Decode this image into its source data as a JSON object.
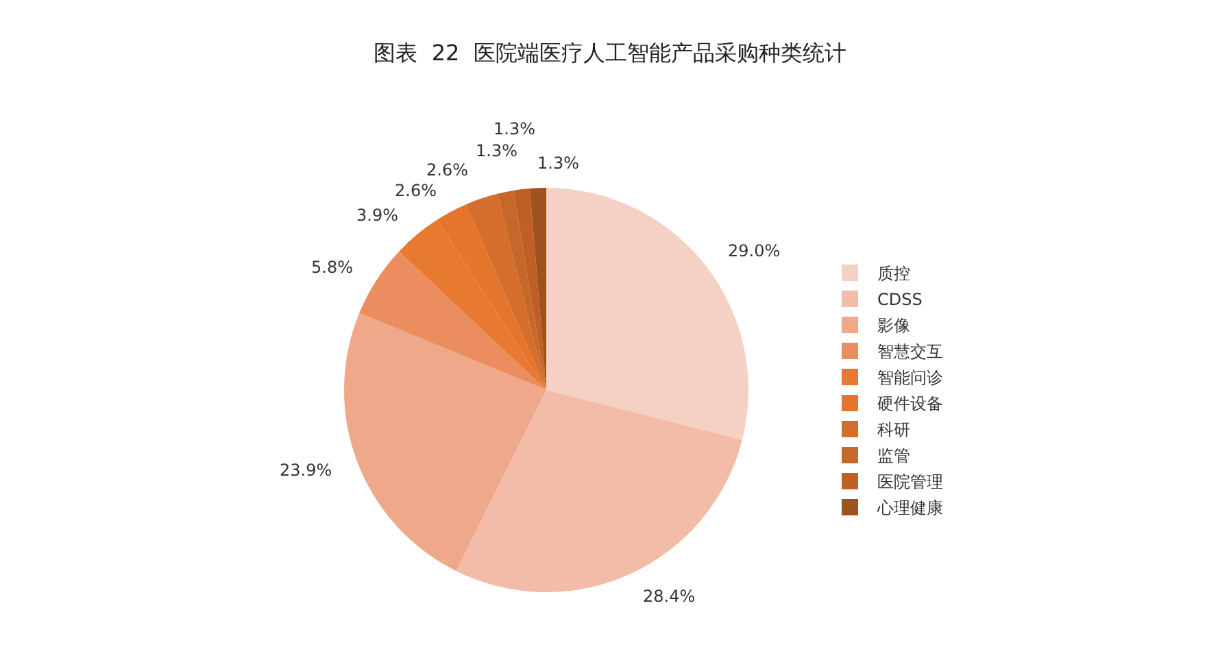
{
  "chart_data": {
    "type": "pie",
    "title": "图表  22  医院端医疗人工智能产品采购种类统计",
    "categories": [
      "质控",
      "CDSS",
      "影像",
      "智慧交互",
      "智能问诊",
      "硬件设备",
      "科研",
      "监管",
      "医院管理",
      "心理健康"
    ],
    "values": [
      29.0,
      28.4,
      23.9,
      5.8,
      3.9,
      2.6,
      2.6,
      1.3,
      1.3,
      1.3
    ],
    "value_labels": [
      "29.0%",
      "28.4%",
      "23.9%",
      "5.8%",
      "3.9%",
      "2.6%",
      "2.6%",
      "1.3%",
      "1.3%",
      "1.3%"
    ],
    "colors": [
      "#f5d0c4",
      "#f3bca8",
      "#efa98a",
      "#eb8d5e",
      "#e77a30",
      "#e5752c",
      "#d56d2c",
      "#c8672a",
      "#bf5f26",
      "#a0521e"
    ],
    "legend": "right"
  }
}
